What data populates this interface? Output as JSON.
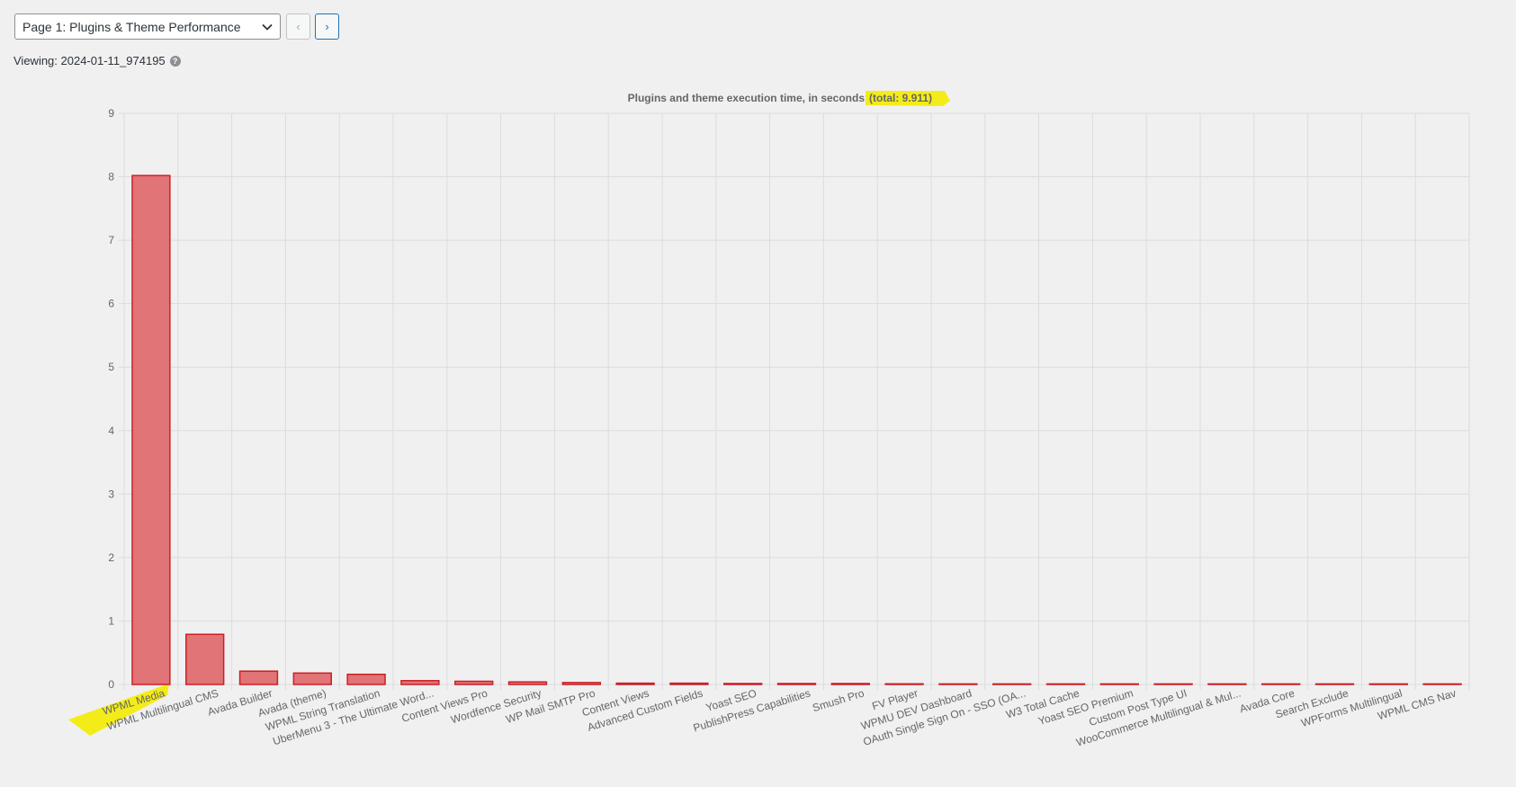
{
  "toolbar": {
    "page_select_value": "Page 1: Plugins & Theme Performance",
    "prev_label": "‹",
    "next_label": "›"
  },
  "viewing": {
    "label": "Viewing: 2024-01-11_974195",
    "help_icon_text": "?"
  },
  "colors": {
    "bar_fill": "#e07476",
    "bar_stroke": "#cc1f25",
    "highlight": "#f3ec18",
    "grid": "#dcdcde"
  },
  "chart_data": {
    "type": "bar",
    "title": "Plugins and theme execution time, in seconds",
    "title_total": "(total: 9.911)",
    "xlabel": "",
    "ylabel": "",
    "ylim": [
      0,
      9
    ],
    "yticks": [
      "0",
      "1",
      "2",
      "3",
      "4",
      "5",
      "6",
      "7",
      "8",
      "9"
    ],
    "grid": true,
    "categories": [
      "WPML Media",
      "WPML Multilingual CMS",
      "Avada Builder",
      "Avada (theme)",
      "WPML String Translation",
      "UberMenu 3 - The Ultimate Word...",
      "Content Views Pro",
      "Wordfence Security",
      "WP Mail SMTP Pro",
      "Content Views",
      "Advanced Custom Fields",
      "Yoast SEO",
      "PublishPress Capabilities",
      "Smush Pro",
      "FV Player",
      "WPMU DEV Dashboard",
      "OAuth Single Sign On - SSO (OA...",
      "W3 Total Cache",
      "Yoast SEO Premium",
      "Custom Post Type UI",
      "WooCommerce Multilingual & Mul...",
      "Avada Core",
      "Search Exclude",
      "WPForms Multilingual",
      "WPML CMS Nav"
    ],
    "values": [
      8.02,
      0.79,
      0.21,
      0.18,
      0.16,
      0.06,
      0.05,
      0.04,
      0.03,
      0.02,
      0.02,
      0.015,
      0.015,
      0.015,
      0.01,
      0.004,
      0.002,
      0.002,
      0.002,
      0.002,
      0.002,
      0.002,
      0.002,
      0.005,
      0.005
    ]
  }
}
